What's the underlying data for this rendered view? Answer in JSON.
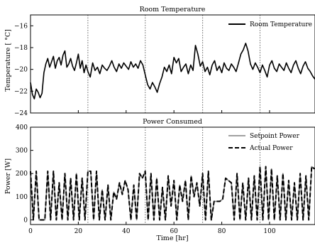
{
  "chart_data": [
    {
      "type": "line",
      "title": "Room Temperature",
      "xlabel": "",
      "ylabel": "Temperature [ °C]",
      "xlim": [
        0,
        119
      ],
      "ylim": [
        -24,
        -15
      ],
      "xticks": [
        0,
        20,
        40,
        60,
        80,
        100
      ],
      "yticks": [
        -22,
        -20,
        -18,
        -16
      ],
      "ytick_labels": [
        "−22",
        "−20",
        "−18",
        "−16"
      ],
      "ybottom_label": "−24",
      "show_x_ticklabels": false,
      "vlines": [
        24,
        48,
        72,
        96
      ],
      "grid": false,
      "legend": "top-right",
      "series": [
        {
          "name": "Room Temperature",
          "color": "#000000",
          "x": [
            0,
            0.8,
            1.6,
            2.4,
            3.2,
            4,
            4.8,
            5.6,
            6.4,
            7.2,
            8,
            8.8,
            9.6,
            10.4,
            11.2,
            12,
            12.8,
            13.6,
            14.4,
            15.2,
            16,
            16.8,
            17.6,
            18.4,
            19.2,
            20,
            20.8,
            21.6,
            22.4,
            23.2,
            24,
            25,
            26,
            27,
            28,
            29,
            30,
            31,
            32,
            33,
            34,
            35,
            36,
            37,
            38,
            39,
            40,
            41,
            42,
            43,
            44,
            45,
            46,
            47,
            48,
            49,
            50,
            51,
            52,
            53,
            54,
            55,
            56,
            57,
            58,
            59,
            60,
            61,
            62,
            63,
            64,
            65,
            66,
            67,
            68,
            69,
            70,
            71,
            72,
            73,
            74,
            75,
            76,
            77,
            78,
            79,
            80,
            81,
            82,
            83,
            84,
            85,
            86,
            87,
            88,
            89,
            90,
            91,
            92,
            93,
            94,
            95,
            96,
            97,
            98,
            99,
            100,
            101,
            102,
            103,
            104,
            105,
            106,
            107,
            108,
            109,
            110,
            111,
            112,
            113,
            114,
            115,
            116,
            117,
            118,
            119
          ],
          "y": [
            -21.2,
            -22.3,
            -22.7,
            -21.8,
            -22.1,
            -22.6,
            -22.2,
            -20.3,
            -19.5,
            -19.0,
            -19.8,
            -19.3,
            -18.8,
            -19.9,
            -19.2,
            -18.9,
            -19.6,
            -18.7,
            -18.3,
            -19.8,
            -19.5,
            -19.0,
            -19.7,
            -20.1,
            -19.4,
            -18.6,
            -19.9,
            -19.2,
            -20.3,
            -19.6,
            -20.2,
            -20.7,
            -19.4,
            -20.1,
            -19.8,
            -20.4,
            -19.6,
            -19.9,
            -20.1,
            -19.7,
            -19.2,
            -19.8,
            -20.2,
            -19.5,
            -19.9,
            -19.4,
            -19.7,
            -20.0,
            -19.3,
            -19.8,
            -19.5,
            -19.9,
            -19.2,
            -19.6,
            -20.5,
            -21.4,
            -21.8,
            -21.2,
            -21.6,
            -22.1,
            -21.3,
            -20.7,
            -19.8,
            -20.2,
            -19.6,
            -20.4,
            -18.9,
            -19.4,
            -19.0,
            -20.2,
            -19.8,
            -19.5,
            -20.4,
            -19.6,
            -20.1,
            -17.8,
            -18.6,
            -19.7,
            -19.3,
            -20.2,
            -19.8,
            -20.5,
            -19.6,
            -19.2,
            -20.1,
            -19.7,
            -20.3,
            -19.4,
            -19.9,
            -20.1,
            -19.5,
            -19.8,
            -20.2,
            -19.4,
            -18.6,
            -18.2,
            -17.6,
            -18.3,
            -19.5,
            -20.0,
            -19.4,
            -19.8,
            -20.3,
            -19.6,
            -20.1,
            -20.7,
            -19.6,
            -19.2,
            -19.9,
            -20.2,
            -19.5,
            -19.8,
            -20.1,
            -19.4,
            -19.9,
            -20.3,
            -19.6,
            -19.2,
            -19.9,
            -20.4,
            -19.7,
            -19.3,
            -19.9,
            -20.2,
            -20.6,
            -20.9
          ]
        }
      ]
    },
    {
      "type": "line",
      "title": "Power Consumed",
      "xlabel": "Time [hr]",
      "ylabel": "Power [W]",
      "xlim": [
        0,
        119
      ],
      "ylim": [
        -20,
        400
      ],
      "xticks": [
        0,
        20,
        40,
        60,
        80,
        100
      ],
      "yticks": [
        0,
        100,
        200,
        300,
        400
      ],
      "vlines": [
        24,
        48,
        72,
        96
      ],
      "grid": false,
      "legend": "top-right",
      "series": [
        {
          "name": "Setpoint Power",
          "color": "#808080",
          "style": "solid",
          "x": [
            0,
            1.2,
            2.4,
            3.6,
            4.8,
            6.0,
            7.2,
            8.4,
            9.6,
            10.8,
            12.0,
            13.2,
            14.4,
            15.6,
            16.8,
            18.0,
            19.2,
            20.4,
            21.6,
            22.8,
            24.0,
            25.2,
            26.4,
            27.6,
            28.8,
            30.0,
            31.2,
            32.4,
            33.6,
            34.8,
            36.0,
            37.2,
            38.4,
            39.6,
            40.8,
            42.0,
            43.2,
            44.4,
            45.6,
            46.8,
            48.0,
            49.2,
            50.4,
            51.6,
            52.8,
            54.0,
            55.2,
            56.4,
            57.6,
            58.8,
            60.0,
            61.2,
            62.4,
            63.6,
            64.8,
            66.0,
            67.2,
            68.4,
            69.6,
            70.8,
            72.0,
            73.2,
            74.4,
            75.6,
            76.8,
            78.0,
            79.2,
            80.4,
            81.6,
            82.8,
            84.0,
            85.2,
            86.4,
            87.6,
            88.8,
            90.0,
            91.2,
            92.4,
            93.6,
            94.8,
            96.0,
            97.2,
            98.4,
            99.6,
            100.8,
            102.0,
            103.2,
            104.4,
            105.6,
            106.8,
            108.0,
            109.2,
            110.4,
            111.6,
            112.8,
            114.0,
            115.2,
            116.4,
            117.6,
            118.8
          ],
          "y": [
            210,
            0,
            210,
            0,
            0,
            0,
            210,
            0,
            210,
            0,
            160,
            0,
            200,
            0,
            180,
            0,
            200,
            0,
            180,
            0,
            210,
            210,
            0,
            210,
            0,
            130,
            0,
            150,
            0,
            120,
            90,
            160,
            110,
            170,
            130,
            0,
            150,
            0,
            200,
            180,
            210,
            0,
            200,
            0,
            180,
            0,
            140,
            0,
            190,
            60,
            170,
            0,
            150,
            80,
            170,
            0,
            190,
            100,
            160,
            60,
            200,
            0,
            210,
            0,
            80,
            80,
            80,
            90,
            180,
            170,
            160,
            0,
            200,
            0,
            160,
            0,
            180,
            0,
            190,
            0,
            230,
            0,
            230,
            0,
            220,
            0,
            190,
            0,
            200,
            0,
            170,
            0,
            160,
            0,
            200,
            0,
            190,
            0,
            230,
            220
          ]
        },
        {
          "name": "Actual Power",
          "color": "#000000",
          "style": "dashed",
          "x": [
            0,
            1.2,
            2.4,
            3.6,
            4.8,
            6.0,
            7.2,
            8.4,
            9.6,
            10.8,
            12.0,
            13.2,
            14.4,
            15.6,
            16.8,
            18.0,
            19.2,
            20.4,
            21.6,
            22.8,
            24.0,
            25.2,
            26.4,
            27.6,
            28.8,
            30.0,
            31.2,
            32.4,
            33.6,
            34.8,
            36.0,
            37.2,
            38.4,
            39.6,
            40.8,
            42.0,
            43.2,
            44.4,
            45.6,
            46.8,
            48.0,
            49.2,
            50.4,
            51.6,
            52.8,
            54.0,
            55.2,
            56.4,
            57.6,
            58.8,
            60.0,
            61.2,
            62.4,
            63.6,
            64.8,
            66.0,
            67.2,
            68.4,
            69.6,
            70.8,
            72.0,
            73.2,
            74.4,
            75.6,
            76.8,
            78.0,
            79.2,
            80.4,
            81.6,
            82.8,
            84.0,
            85.2,
            86.4,
            87.6,
            88.8,
            90.0,
            91.2,
            92.4,
            93.6,
            94.8,
            96.0,
            97.2,
            98.4,
            99.6,
            100.8,
            102.0,
            103.2,
            104.4,
            105.6,
            106.8,
            108.0,
            109.2,
            110.4,
            111.6,
            112.8,
            114.0,
            115.2,
            116.4,
            117.6,
            118.8
          ],
          "y": [
            210,
            0,
            210,
            0,
            0,
            0,
            210,
            0,
            210,
            0,
            160,
            0,
            200,
            0,
            180,
            0,
            200,
            0,
            180,
            0,
            210,
            210,
            0,
            210,
            0,
            130,
            0,
            150,
            0,
            120,
            90,
            160,
            110,
            170,
            130,
            0,
            150,
            0,
            200,
            180,
            210,
            0,
            200,
            0,
            180,
            0,
            140,
            0,
            190,
            60,
            170,
            0,
            150,
            80,
            170,
            0,
            190,
            100,
            160,
            60,
            200,
            0,
            210,
            0,
            80,
            80,
            80,
            90,
            180,
            170,
            160,
            0,
            200,
            0,
            160,
            0,
            180,
            0,
            190,
            0,
            230,
            0,
            230,
            0,
            220,
            0,
            190,
            0,
            200,
            0,
            170,
            0,
            160,
            0,
            200,
            0,
            190,
            0,
            230,
            220
          ]
        }
      ]
    }
  ]
}
